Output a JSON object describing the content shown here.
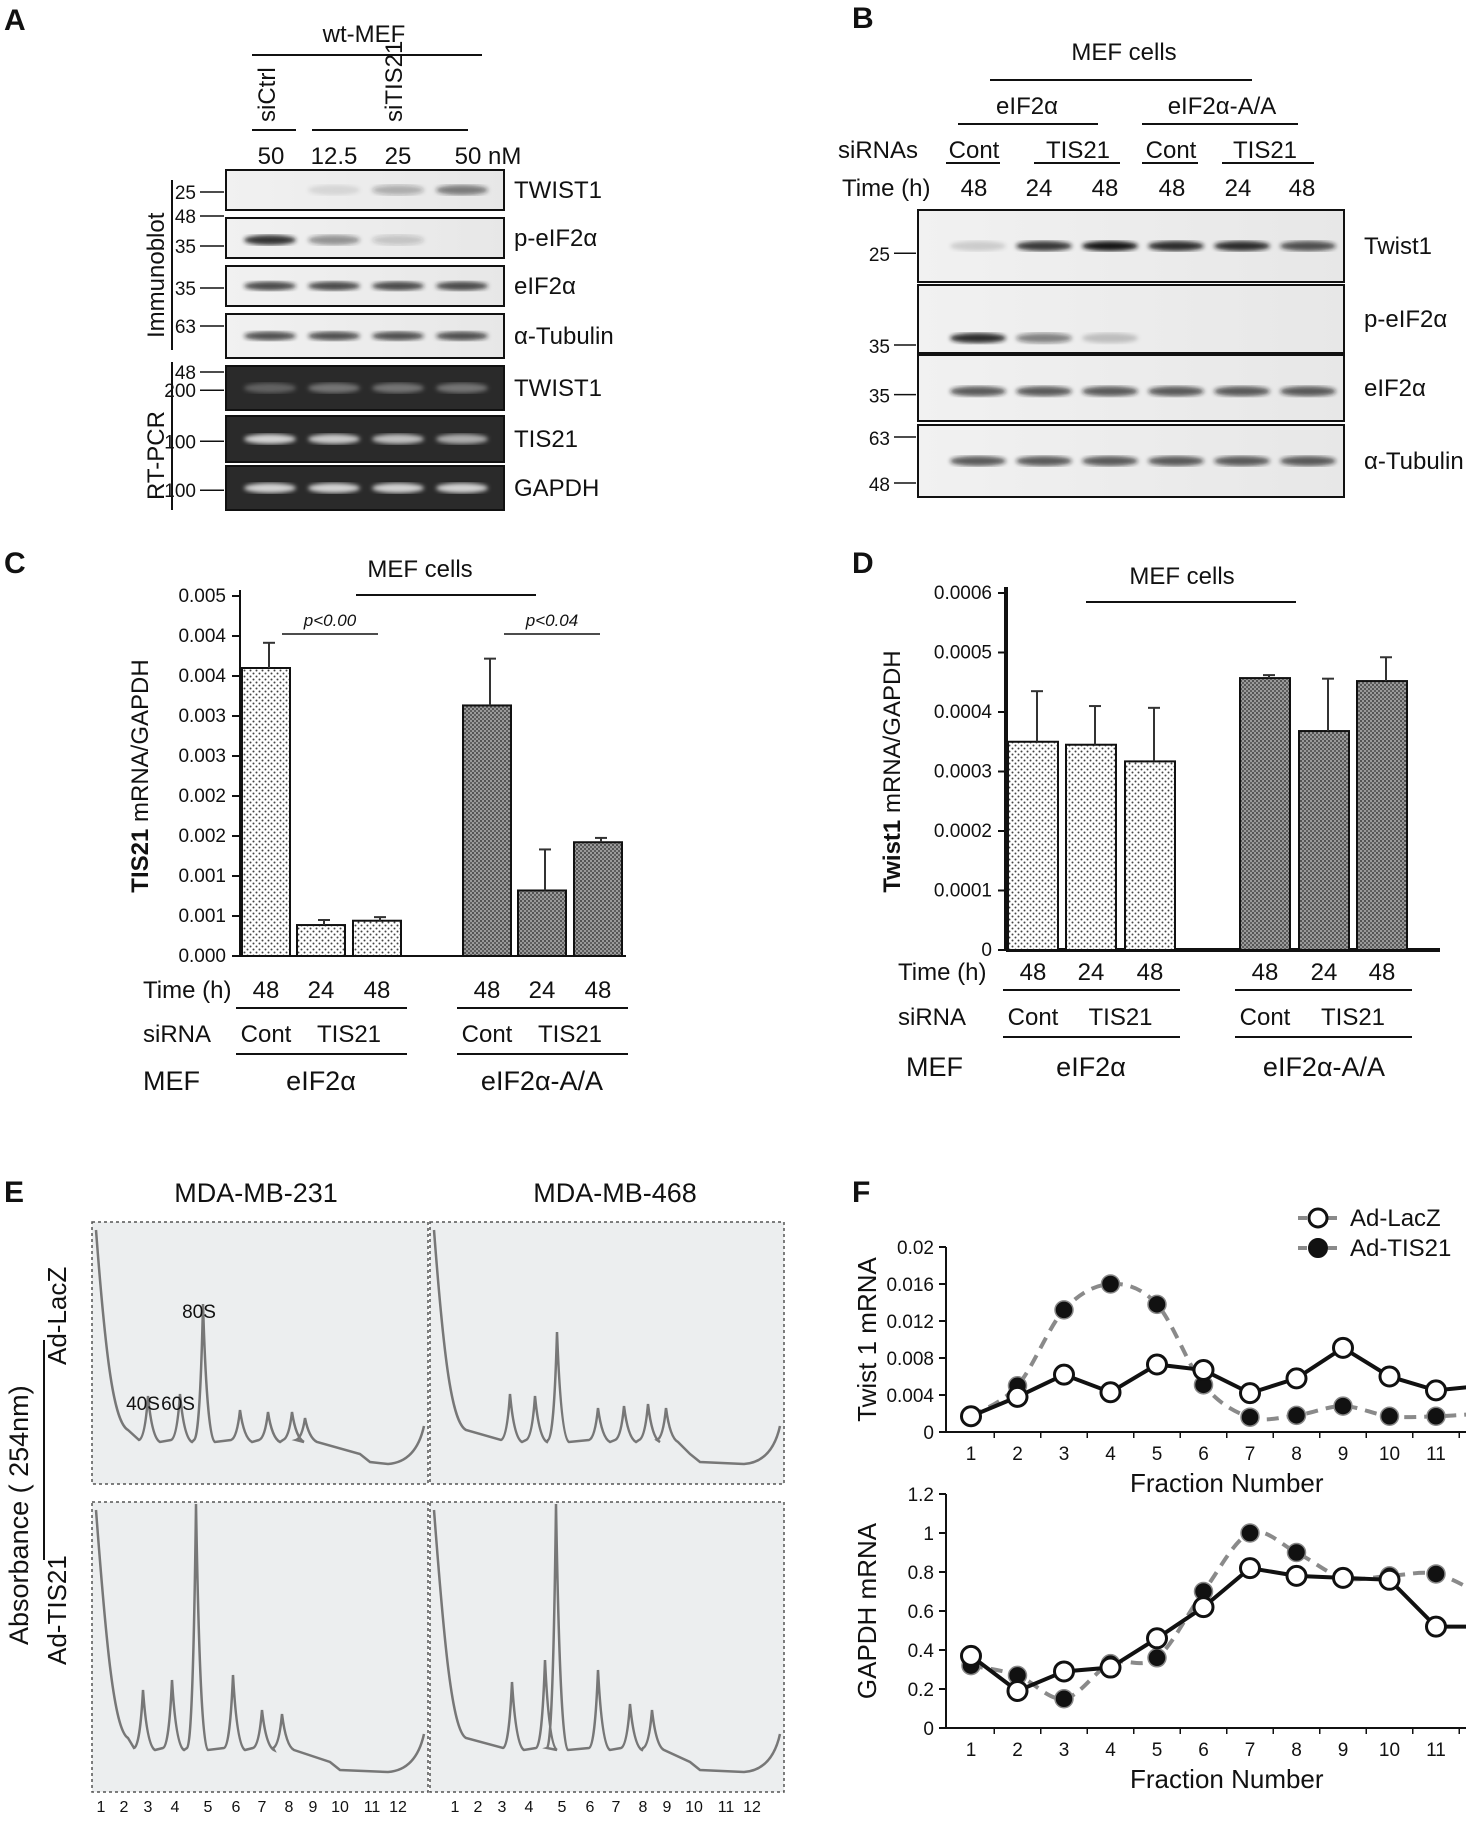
{
  "panels": {
    "A": {
      "letter": "A",
      "header": "wt-MEF",
      "lane_groups": [
        "siCtrl",
        "siTIS21"
      ],
      "doses": [
        "50",
        "12.5",
        "25",
        "50 nM"
      ],
      "section_labels": [
        "Immunoblot",
        "RT-PCR"
      ],
      "bands": [
        {
          "label": "TWIST1",
          "mw": [
            "25"
          ],
          "dark": false
        },
        {
          "label": "p-eIF2α",
          "mw": [
            "48",
            "35"
          ],
          "dark": false
        },
        {
          "label": "eIF2α",
          "mw": [
            "35"
          ],
          "dark": false
        },
        {
          "label": "α-Tubulin",
          "mw": [
            "63",
            "48"
          ],
          "dark": false
        },
        {
          "label": "TWIST1",
          "mw": [
            "200"
          ],
          "dark": true
        },
        {
          "label": "TIS21",
          "mw": [
            "100"
          ],
          "dark": true
        },
        {
          "label": "GAPDH",
          "mw": [
            "100"
          ],
          "dark": true
        }
      ]
    },
    "B": {
      "letter": "B",
      "header": "MEF cells",
      "groups": [
        "eIF2α",
        "eIF2α-A/A"
      ],
      "sirna_label": "siRNAs",
      "sirnas": [
        "Cont",
        "TIS21",
        "Cont",
        "TIS21"
      ],
      "time_label": "Time (h)",
      "times": [
        "48",
        "24",
        "48",
        "48",
        "24",
        "48"
      ],
      "bands": [
        {
          "label": "Twist1",
          "mw": [
            "25"
          ]
        },
        {
          "label": "p-eIF2α",
          "mw": [
            "35"
          ]
        },
        {
          "label": "eIF2α",
          "mw": [
            "35"
          ]
        },
        {
          "label": "α-Tubulin",
          "mw": [
            "63",
            "48"
          ]
        }
      ]
    }
  },
  "bar_labels": {
    "time_row": "Time (h)",
    "sirna_row": "siRNA",
    "mef_row": "MEF",
    "times": [
      "48",
      "24",
      "48",
      "48",
      "24",
      "48"
    ],
    "sirna_cont": "Cont",
    "sirna_tis": "TIS21",
    "group1": "eIF2α",
    "group2": "eIF2α-A/A"
  },
  "chart_data": [
    {
      "id": "C",
      "letter": "C",
      "type": "bar",
      "title": "MEF cells",
      "ylabel_bold": "TIS21",
      "ylabel_rest": " mRNA/GAPDH",
      "yticks": [
        "0.000",
        "0.001",
        "0.001",
        "0.002",
        "0.002",
        "0.003",
        "0.003",
        "0.004",
        "0.004",
        "0.005"
      ],
      "ylim": [
        0,
        0.005
      ],
      "values": [
        0.004,
        0.00043,
        0.00049,
        0.00348,
        0.00091,
        0.00158
      ],
      "errors": [
        0.00035,
        7e-05,
        5e-05,
        0.00065,
        0.00057,
        6e-05
      ],
      "annotations": [
        "p<0.00",
        "p<0.04"
      ]
    },
    {
      "id": "D",
      "letter": "D",
      "type": "bar",
      "title": "MEF cells",
      "ylabel_bold": "Twist1",
      "ylabel_rest": " mRNA/GAPDH",
      "yticks": [
        "0",
        "0.0001",
        "0.0002",
        "0.0003",
        "0.0004",
        "0.0005",
        "0.0006"
      ],
      "ylim": [
        0,
        0.0006
      ],
      "values": [
        0.00035,
        0.000345,
        0.000317,
        0.000457,
        0.000368,
        0.000452
      ],
      "errors": [
        8.5e-05,
        6.5e-05,
        9e-05,
        5e-06,
        8.8e-05,
        4e-05
      ],
      "annotations": []
    },
    {
      "id": "F1",
      "type": "line",
      "ylabel": "Twist 1 mRNA",
      "xlabel": "Fraction Number",
      "x": [
        1,
        2,
        3,
        4,
        5,
        6,
        7,
        8,
        9,
        10,
        11,
        12
      ],
      "yticks": [
        "0",
        "0.004",
        "0.008",
        "0.012",
        "0.016",
        "0.02"
      ],
      "ylim": [
        0,
        0.02
      ],
      "series": [
        {
          "name": "Ad-LacZ",
          "values": [
            0.0017,
            0.0038,
            0.0062,
            0.0043,
            0.0073,
            0.0067,
            0.0042,
            0.0058,
            0.0091,
            0.006,
            0.0045,
            0.005
          ]
        },
        {
          "name": "Ad-TIS21",
          "values": [
            0.0017,
            0.005,
            0.0132,
            0.016,
            0.0138,
            0.0051,
            0.0016,
            0.0018,
            0.0028,
            0.0017,
            0.0017,
            0.002
          ]
        }
      ]
    },
    {
      "id": "F2",
      "type": "line",
      "ylabel": "GAPDH mRNA",
      "xlabel": "Fraction Number",
      "x": [
        1,
        2,
        3,
        4,
        5,
        6,
        7,
        8,
        9,
        10,
        11,
        12
      ],
      "yticks": [
        "0",
        "0.2",
        "0.4",
        "0.6",
        "0.8",
        "1",
        "1.2"
      ],
      "ylim": [
        0,
        1.2
      ],
      "series": [
        {
          "name": "Ad-LacZ",
          "values": [
            0.37,
            0.19,
            0.29,
            0.31,
            0.46,
            0.62,
            0.82,
            0.78,
            0.77,
            0.76,
            0.52,
            0.52
          ]
        },
        {
          "name": "Ad-TIS21",
          "values": [
            0.32,
            0.27,
            0.15,
            0.33,
            0.36,
            0.7,
            1.0,
            0.9,
            0.77,
            0.78,
            0.79,
            0.68
          ]
        }
      ]
    }
  ],
  "panel_E": {
    "letter": "E",
    "columns": [
      "MDA-MB-231",
      "MDA-MB-468"
    ],
    "rows": [
      "Ad-LacZ",
      "Ad-TIS21"
    ],
    "ylabel": "Absorbance ( 254nm)",
    "peak_labels": [
      "80S",
      "40S",
      "60S"
    ],
    "fractions": [
      "1",
      "2",
      "3",
      "4",
      "5",
      "6",
      "7",
      "8",
      "9",
      "10",
      "11",
      "12"
    ]
  },
  "panel_F": {
    "letter": "F",
    "legend": [
      "Ad-LacZ",
      "Ad-TIS21"
    ]
  },
  "colors": {
    "lacz": "#111111",
    "tis21": "#8a8a8a",
    "profile_bg": "#eceeef"
  }
}
